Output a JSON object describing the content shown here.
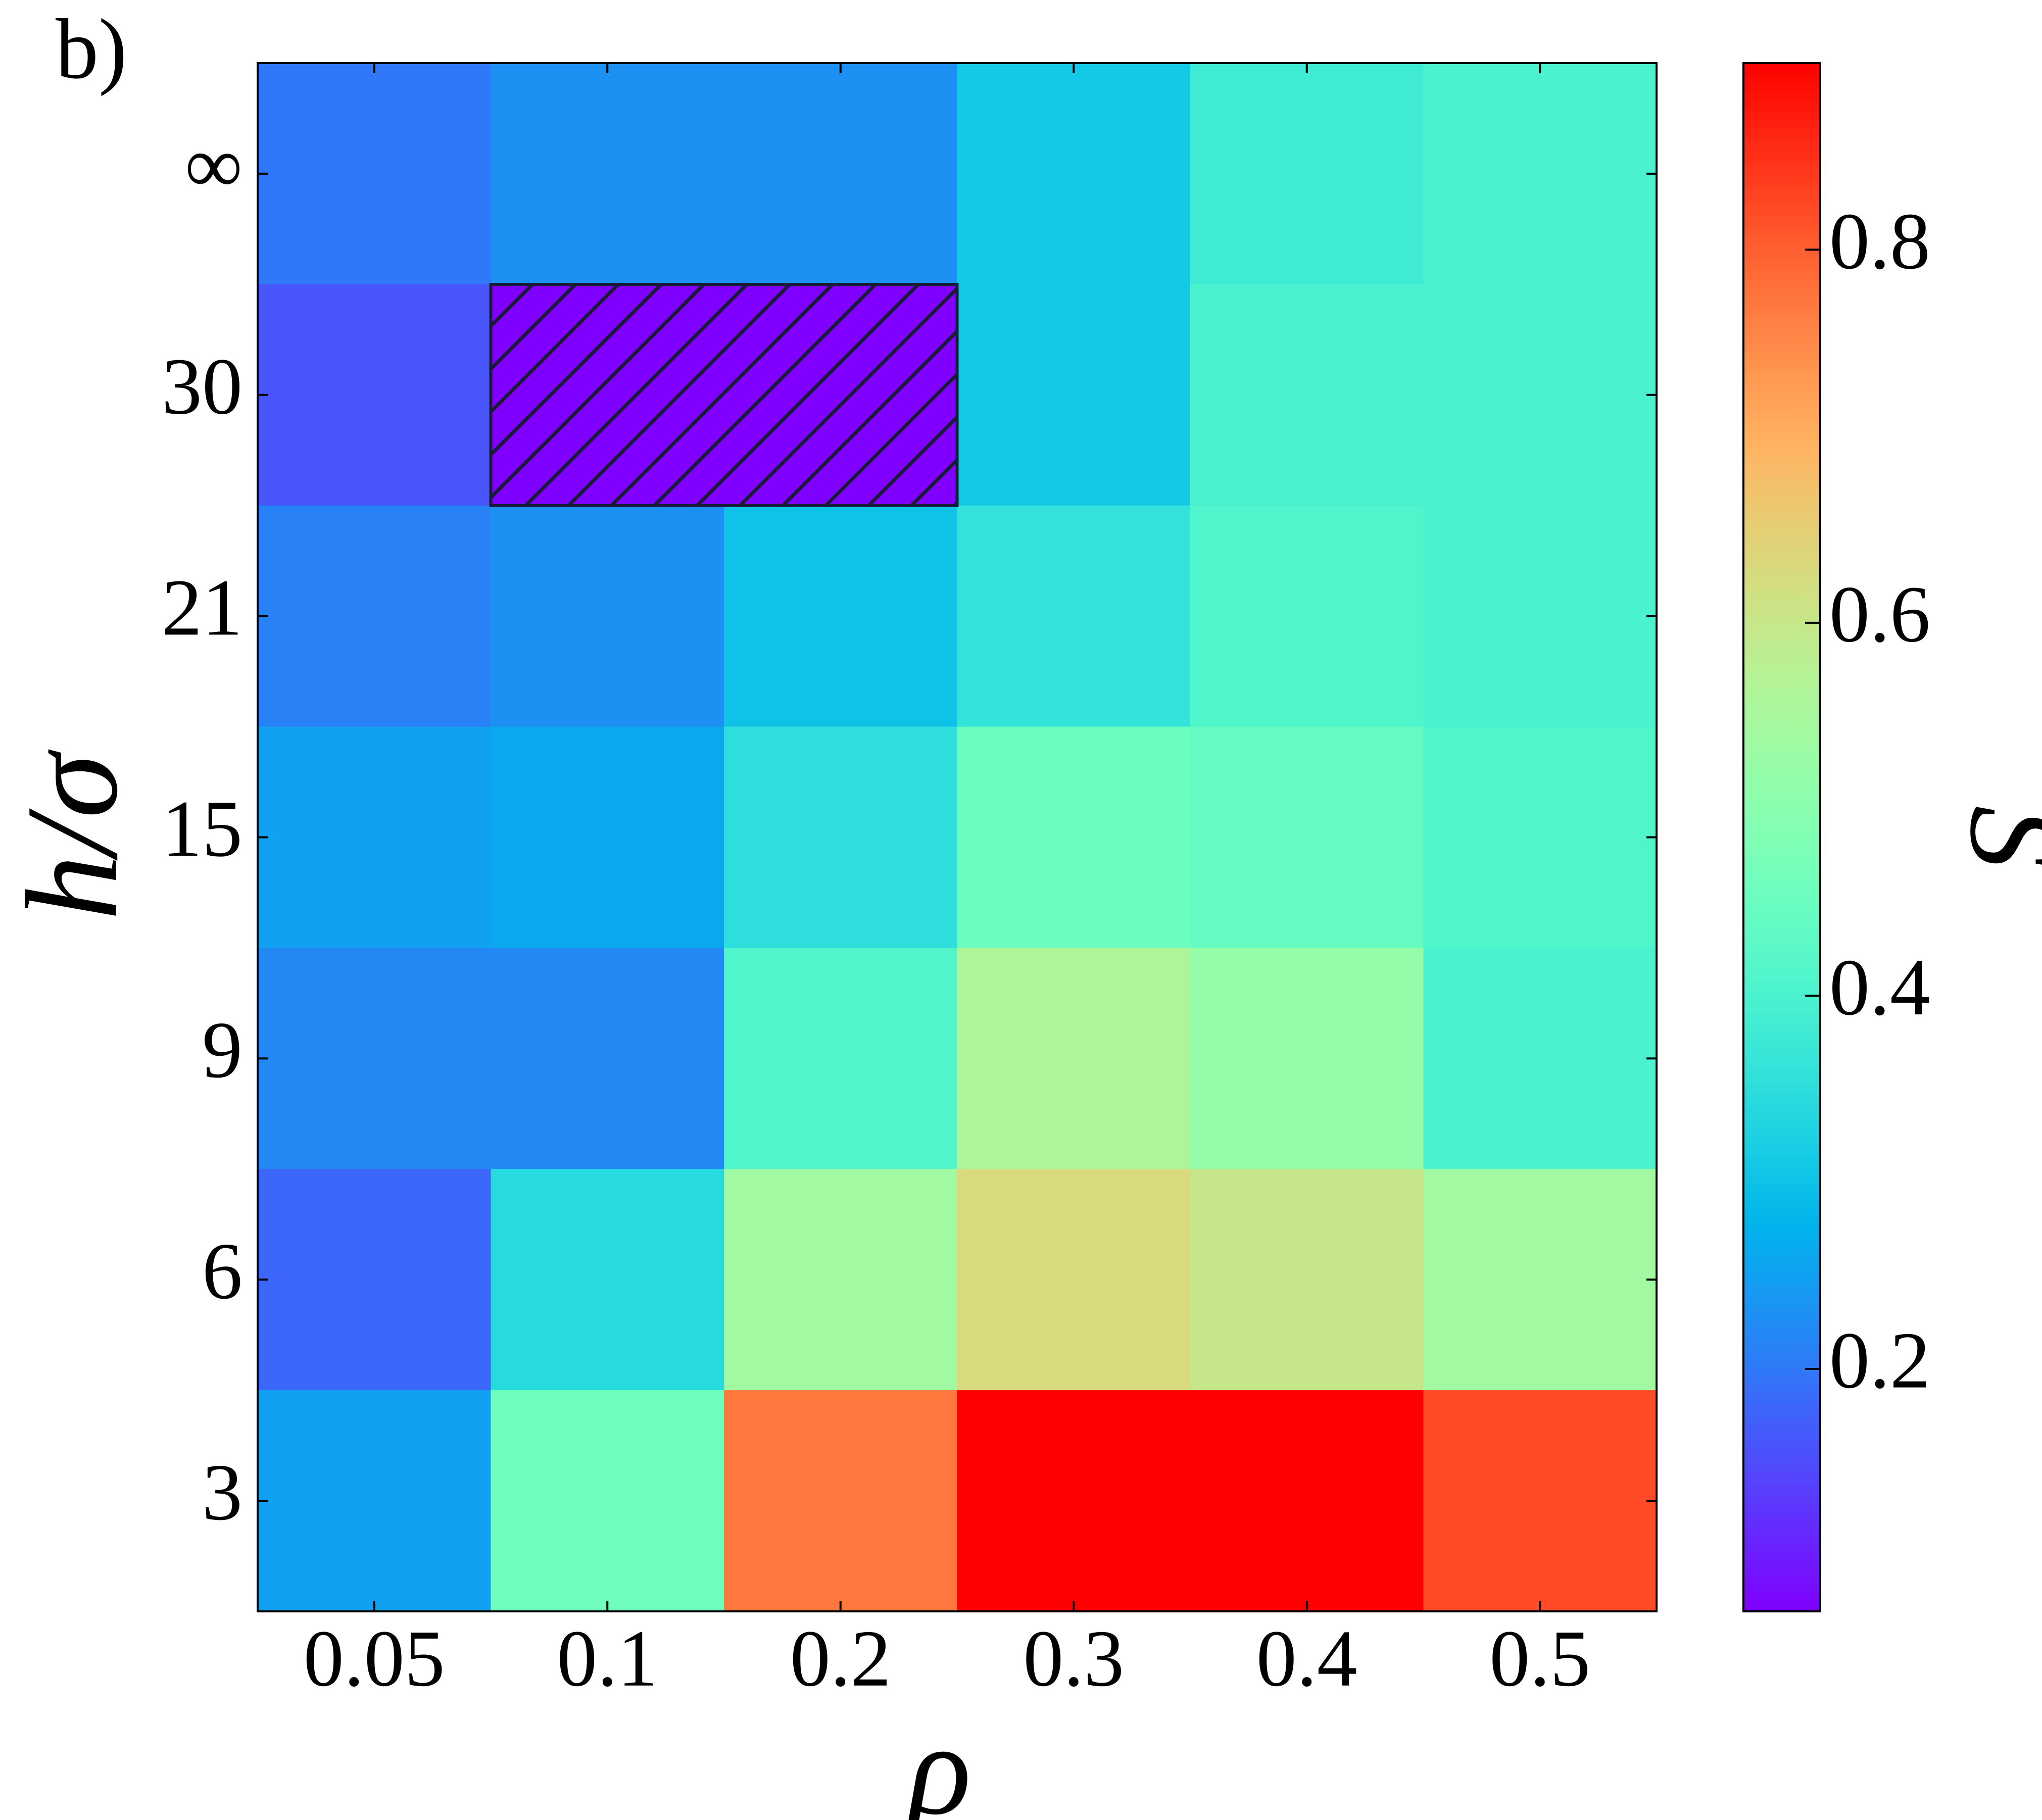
{
  "chart_data": {
    "type": "heatmap",
    "panel_label": "b)",
    "xlabel": "ρ",
    "ylabel": "h/σ",
    "colorbar_label": "S",
    "x_categories": [
      "0.05",
      "0.1",
      "0.2",
      "0.3",
      "0.4",
      "0.5"
    ],
    "y_categories": [
      "∞",
      "30",
      "21",
      "15",
      "9",
      "6",
      "3"
    ],
    "values": [
      [
        0.2,
        0.23,
        0.23,
        0.31,
        0.38,
        0.4
      ],
      [
        0.16,
        0.07,
        0.07,
        0.31,
        0.4,
        0.4
      ],
      [
        0.21,
        0.23,
        0.3,
        0.36,
        0.41,
        0.4
      ],
      [
        0.25,
        0.26,
        0.35,
        0.45,
        0.44,
        0.41
      ],
      [
        0.22,
        0.22,
        0.41,
        0.56,
        0.52,
        0.4
      ],
      [
        0.18,
        0.34,
        0.54,
        0.63,
        0.6,
        0.54
      ],
      [
        0.25,
        0.46,
        0.77,
        0.9,
        0.9,
        0.82
      ]
    ],
    "colormap": "rainbow",
    "clim": [
      0.07,
      0.9
    ],
    "cticks": [
      0.2,
      0.4,
      0.6,
      0.8
    ]
  }
}
